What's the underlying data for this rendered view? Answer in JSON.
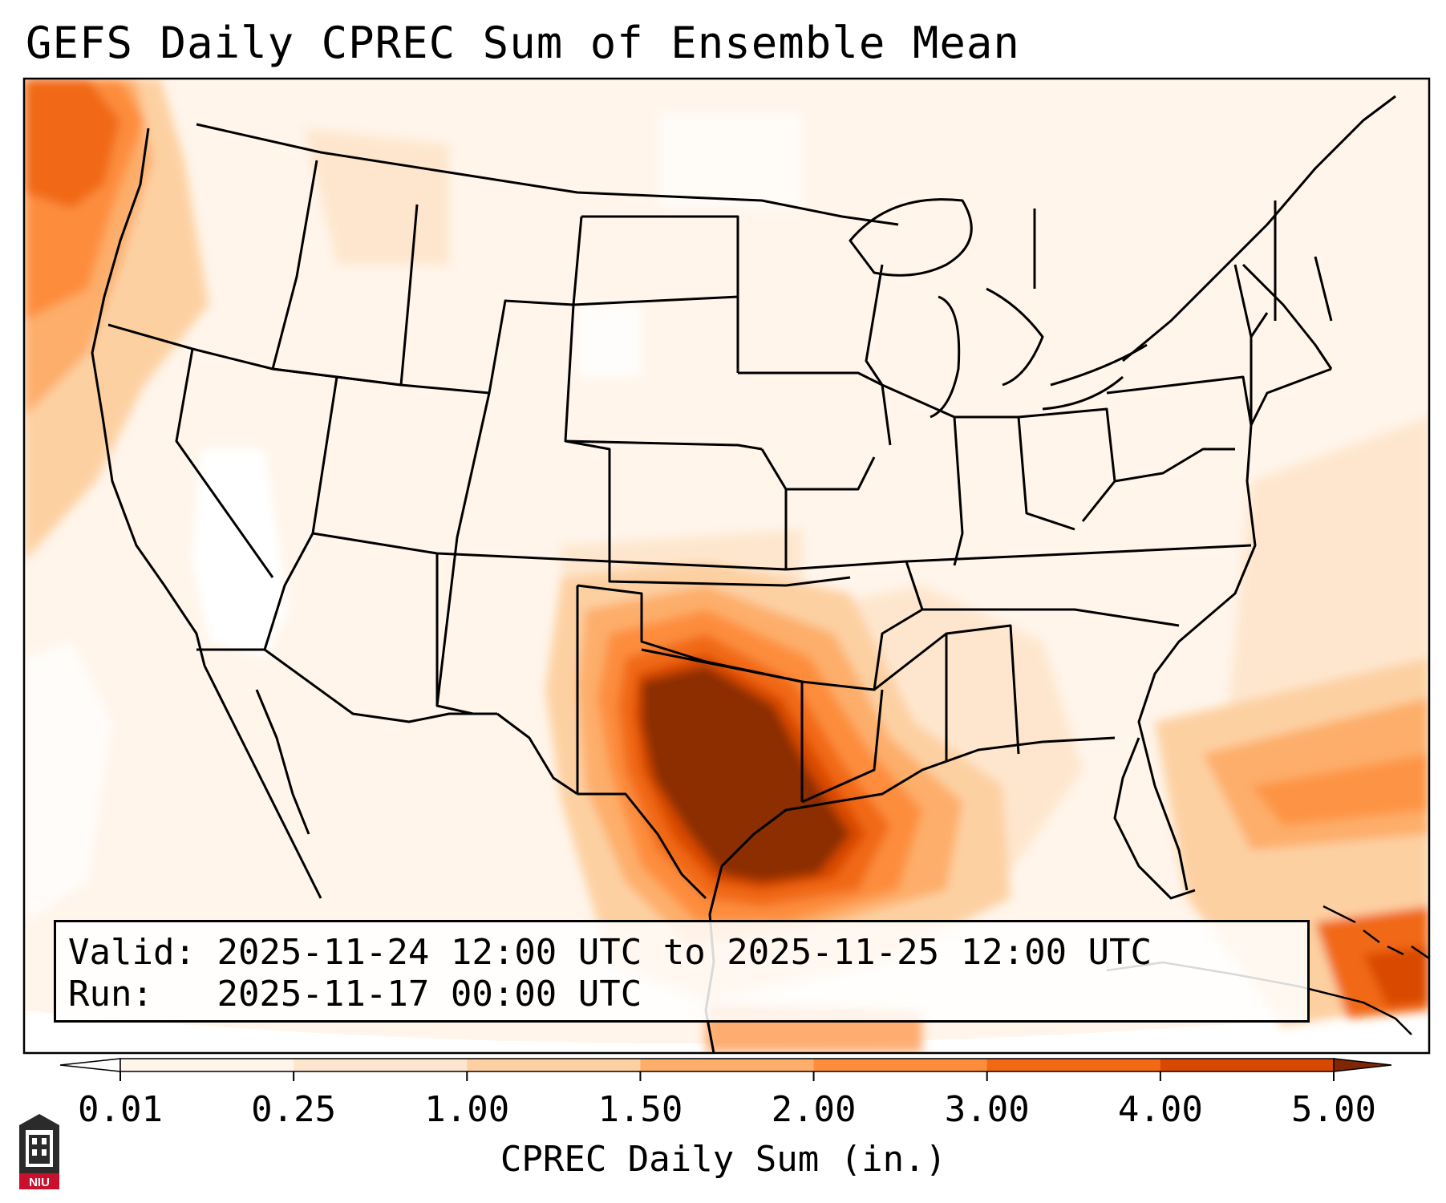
{
  "title": "GEFS Daily CPREC Sum of Ensemble Mean",
  "info": {
    "valid_label": "Valid:",
    "valid_value": "2025-11-24 12:00 UTC to 2025-11-25 12:00 UTC",
    "run_label": "Run:",
    "run_value": "2025-11-17 00:00 UTC"
  },
  "colorbar": {
    "label": "CPREC Daily Sum (in.)",
    "ticks": [
      "0.01",
      "0.25",
      "1.00",
      "1.50",
      "2.00",
      "3.00",
      "4.00",
      "5.00"
    ],
    "colors": [
      "#fff5eb",
      "#fee6ce",
      "#fdd0a2",
      "#fdae6b",
      "#fd8d3c",
      "#f16913",
      "#d94801",
      "#8c2d04"
    ],
    "under_color": "#ffffff",
    "over_color": "#7f2704"
  },
  "logo": {
    "text": "NIU",
    "color": "#c8102e"
  }
}
